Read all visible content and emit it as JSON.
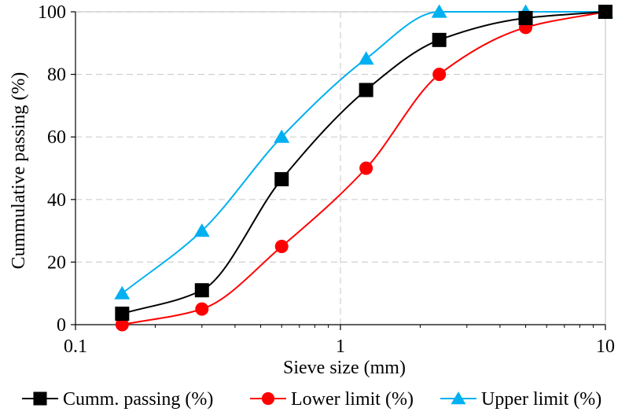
{
  "chart_data": {
    "type": "line",
    "xlabel": "Sieve size (mm)",
    "ylabel": "Cummulative passing (%)",
    "x_scale": "log",
    "xlim": [
      0.1,
      10
    ],
    "ylim": [
      0,
      100
    ],
    "x_ticks": [
      "0.1",
      "1",
      "10"
    ],
    "y_ticks": [
      "0",
      "20",
      "40",
      "60",
      "80",
      "100"
    ],
    "grid": true,
    "legend_position": "bottom",
    "series": [
      {
        "name": "Cumm. passing (%)",
        "color": "#000000",
        "marker": "square",
        "x": [
          0.15,
          0.3,
          0.6,
          1.25,
          2.36,
          5,
          10
        ],
        "y": [
          3.5,
          11,
          46.5,
          75,
          91,
          98,
          100
        ]
      },
      {
        "name": "Lower limit (%)",
        "color": "#ff0000",
        "marker": "circle",
        "x": [
          0.15,
          0.3,
          0.6,
          1.25,
          2.36,
          5,
          10
        ],
        "y": [
          0,
          5,
          25,
          50,
          80,
          95,
          100
        ]
      },
      {
        "name": "Upper limit (%)",
        "color": "#00b0f0",
        "marker": "triangle",
        "x": [
          0.15,
          0.3,
          0.6,
          1.25,
          2.36,
          5,
          10
        ],
        "y": [
          10,
          30,
          60,
          85,
          100,
          100,
          100
        ]
      }
    ]
  }
}
